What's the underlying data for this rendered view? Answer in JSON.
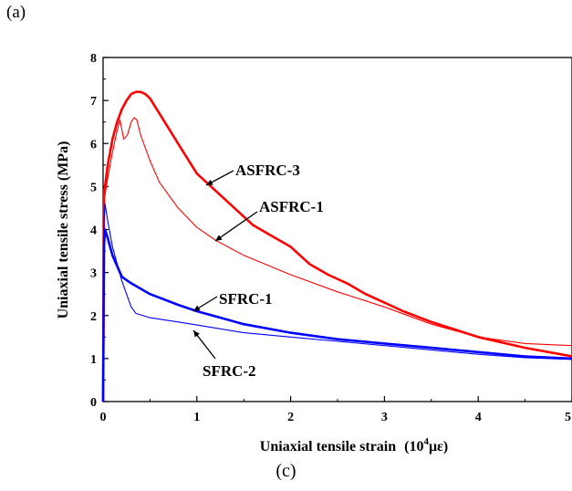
{
  "panel_label": "(a)",
  "caption": "(c)",
  "chart_data": {
    "type": "line",
    "xlabel": "Uniaxial tensile strain",
    "xlabel_unit_base": "(10",
    "xlabel_unit_exp": "4",
    "xlabel_unit_tail": "με)",
    "ylabel": "Uniaxial tensile stress (MPa)",
    "xlim": [
      0,
      5
    ],
    "ylim": [
      0,
      8
    ],
    "xticks": [
      "0",
      "1",
      "2",
      "3",
      "4",
      "5"
    ],
    "yticks": [
      "0",
      "1",
      "2",
      "3",
      "4",
      "5",
      "6",
      "7",
      "8"
    ],
    "grid": false,
    "annotations": [
      "ASFRC-3",
      "ASFRC-1",
      "SFRC-1",
      "SFRC-2"
    ],
    "series": [
      {
        "name": "ASFRC-3",
        "color": "#ff0000",
        "line": "thick",
        "x": [
          0,
          0.01,
          0.02,
          0.05,
          0.1,
          0.15,
          0.2,
          0.25,
          0.3,
          0.35,
          0.4,
          0.45,
          0.5,
          0.6,
          0.8,
          1.0,
          1.2,
          1.4,
          1.6,
          1.8,
          2.0,
          2.2,
          2.4,
          2.6,
          2.8,
          3.0,
          3.2,
          3.5,
          4.0,
          4.5,
          5.0
        ],
        "y": [
          0,
          4.9,
          5.0,
          5.5,
          6.1,
          6.5,
          6.8,
          7.0,
          7.15,
          7.2,
          7.2,
          7.15,
          7.05,
          6.7,
          6.0,
          5.3,
          4.9,
          4.5,
          4.1,
          3.85,
          3.6,
          3.2,
          2.95,
          2.75,
          2.5,
          2.3,
          2.1,
          1.85,
          1.5,
          1.25,
          1.05
        ]
      },
      {
        "name": "ASFRC-1",
        "color": "#ff0000",
        "line": "thin",
        "x": [
          0,
          0.01,
          0.02,
          0.05,
          0.1,
          0.15,
          0.18,
          0.22,
          0.26,
          0.3,
          0.33,
          0.36,
          0.4,
          0.5,
          0.6,
          0.8,
          1.0,
          1.2,
          1.5,
          2.0,
          2.5,
          3.0,
          3.5,
          4.0,
          4.5,
          5.0
        ],
        "y": [
          0,
          4.6,
          4.8,
          5.2,
          5.8,
          6.3,
          6.55,
          6.1,
          6.2,
          6.5,
          6.6,
          6.55,
          6.2,
          5.6,
          5.1,
          4.5,
          4.05,
          3.75,
          3.4,
          2.95,
          2.55,
          2.2,
          1.8,
          1.5,
          1.35,
          1.3
        ]
      },
      {
        "name": "SFRC-1",
        "color": "#0000ff",
        "line": "thick",
        "x": [
          0,
          0.01,
          0.02,
          0.05,
          0.1,
          0.2,
          0.3,
          0.5,
          0.8,
          1.0,
          1.5,
          2.0,
          2.5,
          3.0,
          3.5,
          4.0,
          4.5,
          5.0
        ],
        "y": [
          0,
          3.6,
          4.0,
          3.8,
          3.4,
          2.9,
          2.75,
          2.5,
          2.25,
          2.1,
          1.8,
          1.6,
          1.45,
          1.35,
          1.25,
          1.15,
          1.05,
          1.0
        ]
      },
      {
        "name": "SFRC-2",
        "color": "#0000ff",
        "line": "thin",
        "x": [
          0,
          0.01,
          0.02,
          0.05,
          0.1,
          0.2,
          0.3,
          0.35,
          0.5,
          0.8,
          1.0,
          1.5,
          2.0,
          2.5,
          3.0,
          3.5,
          4.0,
          4.5,
          5.0
        ],
        "y": [
          0,
          4.2,
          4.6,
          4.2,
          3.6,
          2.8,
          2.2,
          2.05,
          1.95,
          1.85,
          1.78,
          1.6,
          1.5,
          1.4,
          1.3,
          1.2,
          1.1,
          1.02,
          0.98
        ]
      }
    ]
  }
}
